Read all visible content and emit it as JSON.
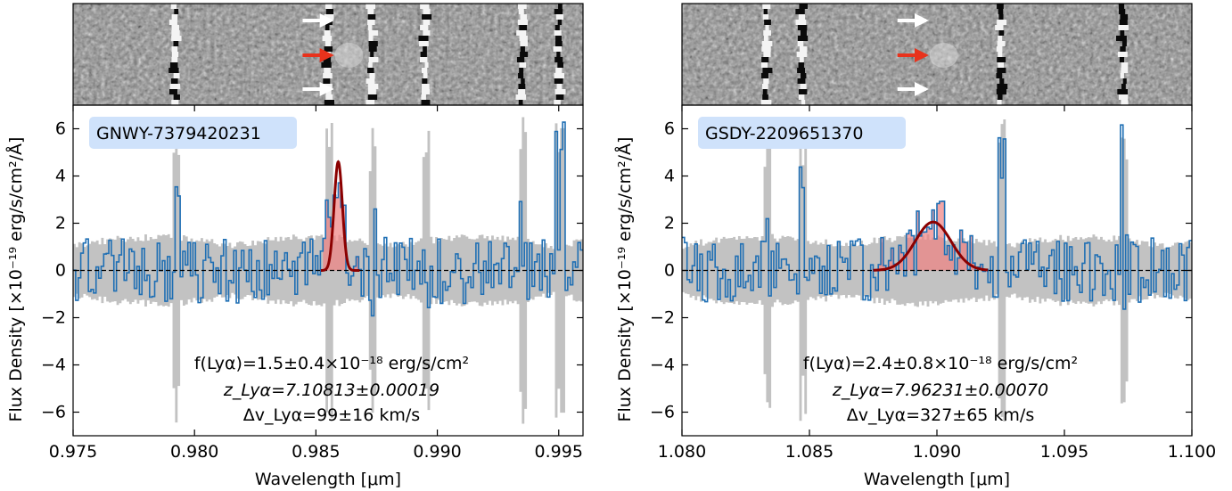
{
  "chart_data": [
    {
      "type": "line",
      "name_badge": "GNWY-7379420231",
      "xlabel": "Wavelength [μm]",
      "ylabel": "Flux Density [×10⁻¹⁹ erg/s/cm²/Å]",
      "xlim": [
        0.975,
        0.996
      ],
      "ylim": [
        -7,
        7
      ],
      "xticks": [
        0.975,
        0.98,
        0.985,
        0.99,
        0.995
      ],
      "xtick_labels": [
        "0.975",
        "0.980",
        "0.985",
        "0.990",
        "0.995"
      ],
      "yticks": [
        -6,
        -4,
        -2,
        0,
        2,
        4,
        6
      ],
      "ytick_labels": [
        "−6",
        "−4",
        "−2",
        "0",
        "2",
        "4",
        "6"
      ],
      "annotation": {
        "flux": "f(Lyα)=1.5±0.4×10⁻¹⁸ erg/s/cm²",
        "redshift": "z_Lyα=7.10813±0.00019",
        "velocity": "Δv_Lyα=99±16 km/s"
      },
      "fit": {
        "center": 0.98592,
        "amplitude": 4.6,
        "sigma": 0.00017,
        "range": [
          0.9852,
          0.9868
        ]
      },
      "spike_positions": [
        0.9792,
        0.9855,
        0.9873,
        0.9895,
        0.9935,
        0.995
      ]
    },
    {
      "type": "line",
      "name_badge": "GSDY-2209651370",
      "xlabel": "Wavelength [μm]",
      "ylabel": "Flux Density [×10⁻¹⁹ erg/s/cm²/Å]",
      "xlim": [
        1.08,
        1.1
      ],
      "ylim": [
        -7,
        7
      ],
      "xticks": [
        1.08,
        1.085,
        1.09,
        1.095,
        1.1
      ],
      "xtick_labels": [
        "1.080",
        "1.085",
        "1.090",
        "1.095",
        "1.100"
      ],
      "yticks": [
        -6,
        -4,
        -2,
        0,
        2,
        4,
        6
      ],
      "ytick_labels": [
        "−6",
        "−4",
        "−2",
        "0",
        "2",
        "4",
        "6"
      ],
      "annotation": {
        "flux": "f(Lyα)=2.4±0.8×10⁻¹⁸ erg/s/cm²",
        "redshift": "z_Lyα=7.96231±0.00070",
        "velocity": "Δv_Lyα=327±65 km/s"
      },
      "fit": {
        "center": 1.08985,
        "amplitude": 2.05,
        "sigma": 0.0007,
        "range": [
          1.0875,
          1.092
        ]
      },
      "spike_positions": [
        1.0833,
        1.0847,
        1.0925,
        1.0973
      ]
    }
  ]
}
